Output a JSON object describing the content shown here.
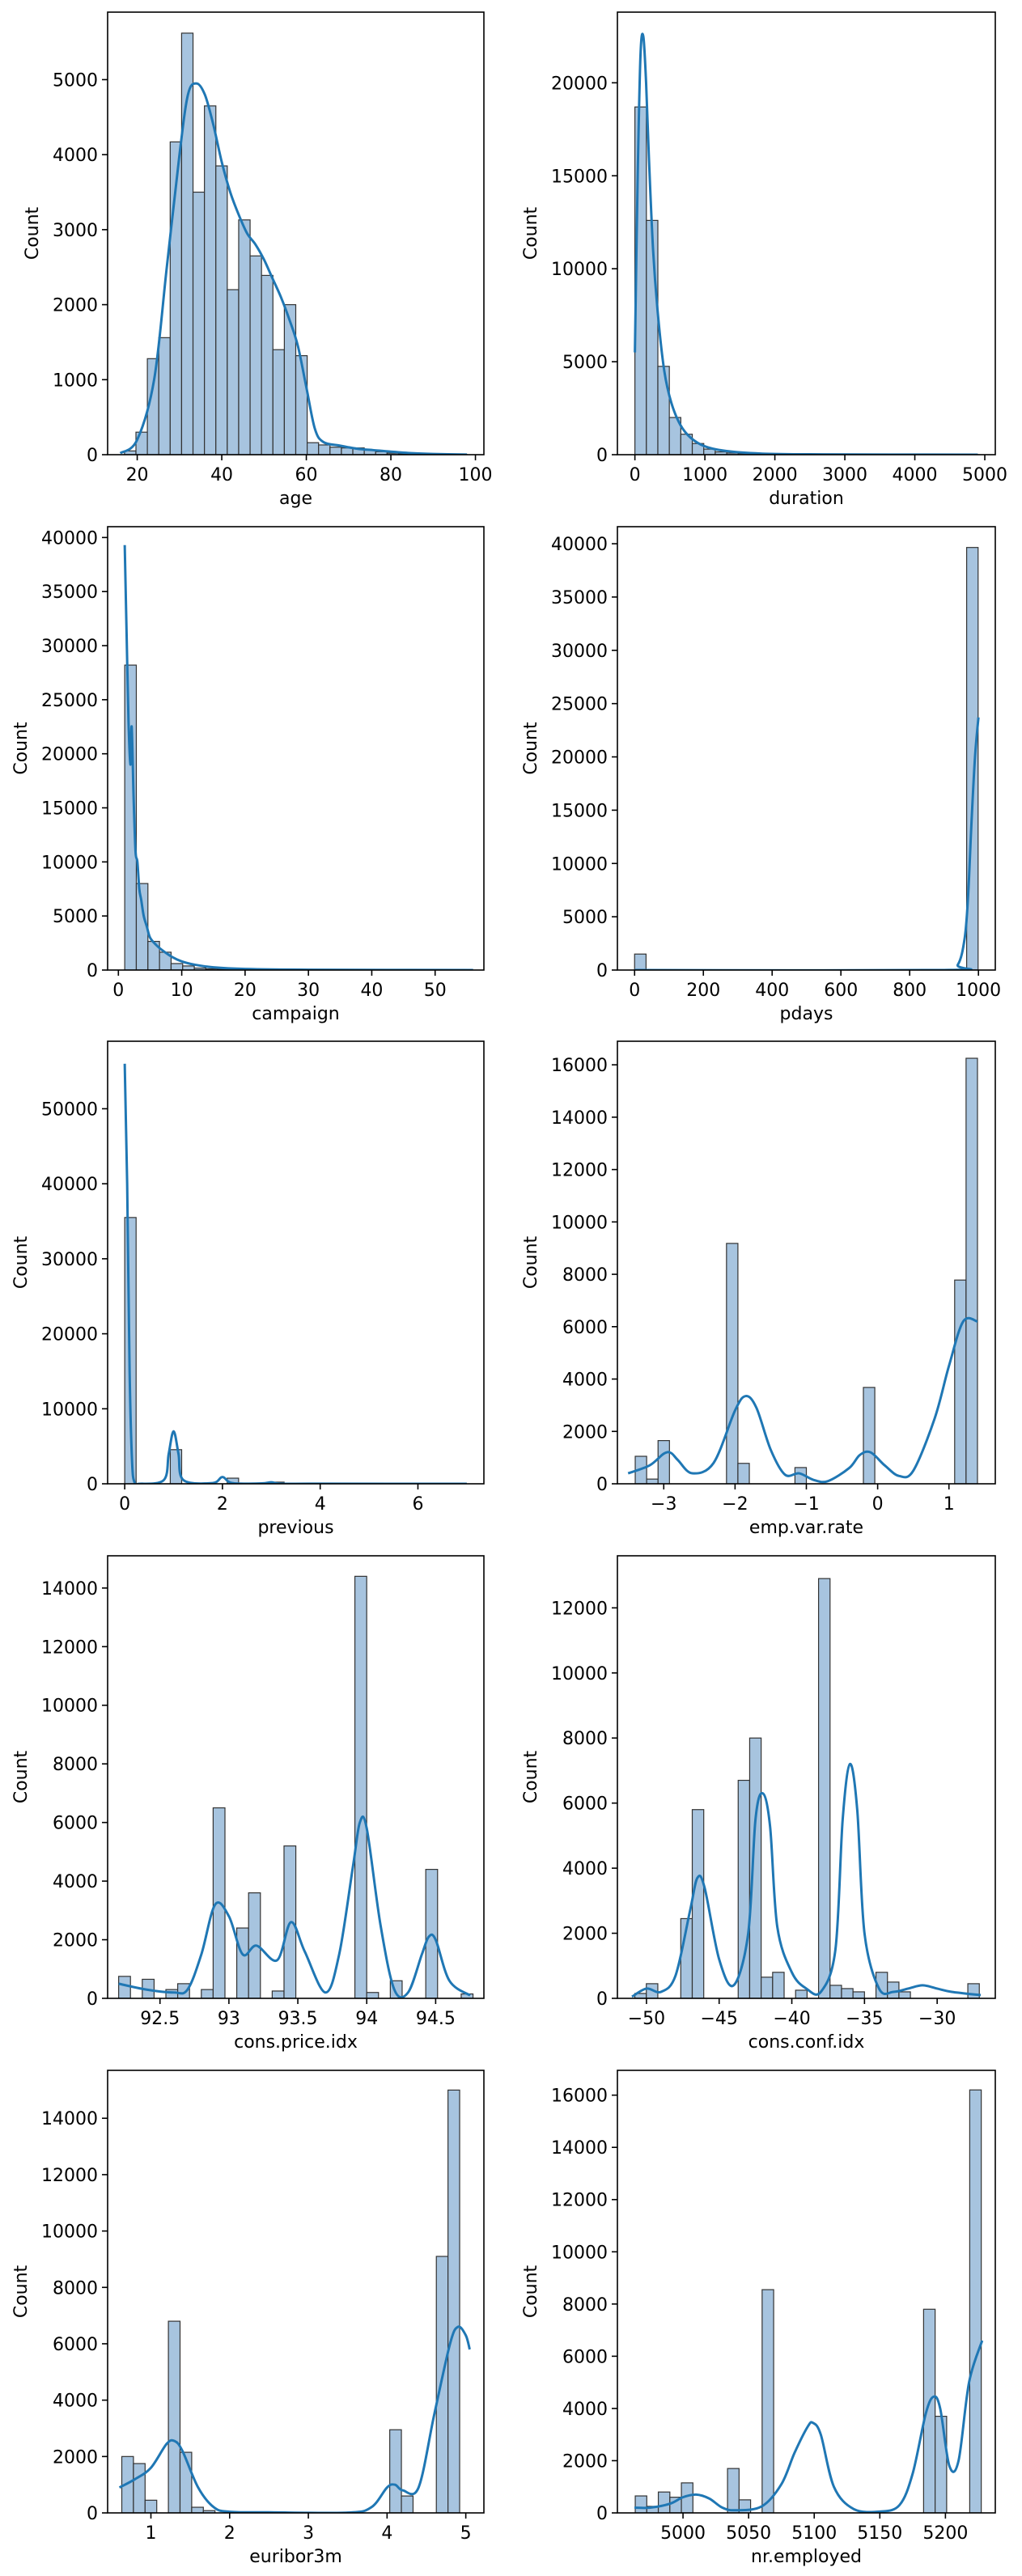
{
  "colors": {
    "bar_fill": "#a7c4df",
    "bar_edge": "#333333",
    "kde_line": "#1f77b4",
    "axes": "#000000"
  },
  "chart_data": [
    {
      "type": "bar",
      "xlabel": "age",
      "ylabel": "Count",
      "xlim": [
        13,
        102
      ],
      "ylim": [
        0,
        5900
      ],
      "xticks": [
        20,
        40,
        60,
        80,
        100
      ],
      "yticks": [
        0,
        1000,
        2000,
        3000,
        4000,
        5000
      ],
      "bins": {
        "start": 17,
        "width": 2.7,
        "counts": [
          50,
          300,
          1280,
          1560,
          4170,
          5620,
          3500,
          4650,
          3850,
          2200,
          3130,
          2650,
          2390,
          1400,
          2000,
          1320,
          160,
          130,
          100,
          90,
          90,
          60,
          40,
          20,
          10,
          5,
          5,
          5,
          3,
          2
        ]
      },
      "kde": {
        "x": [
          16,
          20,
          24,
          27,
          30,
          32,
          34,
          36,
          38,
          40,
          42,
          44,
          46,
          48,
          50,
          52,
          54,
          56,
          58,
          60,
          62,
          64,
          68,
          72,
          76,
          80,
          85,
          90,
          98
        ],
        "y": [
          20,
          200,
          1000,
          2500,
          4000,
          4800,
          4950,
          4800,
          4400,
          3900,
          3500,
          3200,
          2950,
          2800,
          2600,
          2350,
          2100,
          1800,
          1450,
          900,
          350,
          170,
          120,
          80,
          60,
          40,
          20,
          10,
          2
        ]
      }
    },
    {
      "type": "bar",
      "xlabel": "duration",
      "ylabel": "Count",
      "xlim": [
        -250,
        5150
      ],
      "ylim": [
        0,
        23800
      ],
      "xticks": [
        0,
        1000,
        2000,
        3000,
        4000,
        5000
      ],
      "yticks": [
        0,
        5000,
        10000,
        15000,
        20000
      ],
      "bins": {
        "start": 0,
        "width": 164,
        "counts": [
          18700,
          12600,
          4750,
          2000,
          1100,
          600,
          300,
          150,
          90,
          60,
          40,
          20,
          10,
          8,
          5,
          5,
          3,
          2,
          2,
          1,
          1,
          1,
          1,
          0,
          0,
          0,
          0,
          0,
          0,
          1
        ]
      },
      "kde": {
        "x": [
          0,
          40,
          80,
          120,
          160,
          200,
          260,
          330,
          420,
          520,
          650,
          800,
          1000,
          1300,
          1800,
          2500,
          4900
        ],
        "y": [
          5500,
          15000,
          21500,
          22500,
          20000,
          16000,
          11000,
          7500,
          4500,
          2800,
          1600,
          900,
          450,
          200,
          60,
          20,
          0
        ]
      }
    },
    {
      "type": "bar",
      "xlabel": "campaign",
      "ylabel": "Count",
      "xlim": [
        -1.7,
        57.7
      ],
      "ylim": [
        0,
        41000
      ],
      "xticks": [
        0,
        10,
        20,
        30,
        40,
        50
      ],
      "yticks": [
        0,
        5000,
        10000,
        15000,
        20000,
        25000,
        30000,
        35000,
        40000
      ],
      "bins": {
        "start": 1,
        "width": 1.83,
        "counts": [
          28200,
          8000,
          2650,
          1650,
          600,
          380,
          180,
          110,
          80,
          50,
          30,
          20,
          15,
          10,
          8,
          6,
          5,
          4,
          3,
          3,
          2,
          2,
          2,
          1,
          1,
          1,
          1,
          1,
          1,
          1
        ]
      },
      "kde": {
        "x": [
          1,
          1.3,
          1.6,
          1.9,
          2.1,
          2.4,
          2.7,
          3.0,
          3.3,
          3.6,
          4.0,
          4.5,
          5.0,
          6.0,
          7.0,
          8.5,
          10,
          12,
          15,
          20,
          30,
          56
        ],
        "y": [
          39300,
          31000,
          23000,
          19000,
          22500,
          16000,
          11000,
          10000,
          7500,
          6500,
          5000,
          4000,
          3000,
          2300,
          1800,
          1200,
          800,
          500,
          250,
          100,
          30,
          0
        ]
      }
    },
    {
      "type": "bar",
      "xlabel": "pdays",
      "ylabel": "Count",
      "xlim": [
        -50,
        1049
      ],
      "ylim": [
        0,
        41600
      ],
      "xticks": [
        0,
        200,
        400,
        600,
        800,
        1000
      ],
      "yticks": [
        0,
        5000,
        10000,
        15000,
        20000,
        25000,
        30000,
        35000,
        40000
      ],
      "bins": {
        "start": 0,
        "width": 33.3,
        "counts": [
          1500,
          0,
          0,
          0,
          0,
          0,
          0,
          0,
          0,
          0,
          0,
          0,
          0,
          0,
          0,
          0,
          0,
          0,
          0,
          0,
          0,
          0,
          0,
          0,
          0,
          0,
          0,
          0,
          0,
          39650
        ]
      },
      "kde": {
        "x": [
          0,
          900,
          940,
          960,
          970,
          980,
          990,
          1000
        ],
        "y": [
          0,
          0,
          500,
          3000,
          7000,
          14000,
          20000,
          23700
        ]
      }
    },
    {
      "type": "bar",
      "xlabel": "previous",
      "ylabel": "Count",
      "xlim": [
        -0.35,
        7.35
      ],
      "ylim": [
        0,
        59000
      ],
      "xticks": [
        0,
        2,
        4,
        6
      ],
      "yticks": [
        0,
        10000,
        20000,
        30000,
        40000,
        50000
      ],
      "bins": {
        "start": 0,
        "width": 0.233,
        "counts": [
          35500,
          0,
          0,
          0,
          4550,
          0,
          0,
          0,
          0,
          750,
          0,
          0,
          0,
          220,
          0,
          0,
          0,
          70,
          0,
          0,
          0,
          0,
          18,
          0,
          0,
          0,
          5,
          0,
          0,
          1
        ]
      },
      "kde": {
        "x": [
          0,
          0.05,
          0.1,
          0.15,
          0.2,
          0.3,
          0.8,
          0.9,
          1.0,
          1.1,
          1.2,
          1.8,
          2.0,
          2.2,
          2.8,
          3.0,
          3.2,
          4,
          7
        ],
        "y": [
          56000,
          40000,
          15000,
          3000,
          200,
          0,
          500,
          4000,
          7000,
          4000,
          500,
          100,
          900,
          100,
          50,
          200,
          20,
          10,
          0
        ]
      }
    },
    {
      "type": "bar",
      "xlabel": "emp.var.rate",
      "ylabel": "Count",
      "xlim": [
        -3.65,
        1.65
      ],
      "ylim": [
        0,
        16900
      ],
      "xticks": [
        -3,
        -2,
        -1,
        0,
        1
      ],
      "yticks": [
        0,
        2000,
        4000,
        6000,
        8000,
        10000,
        12000,
        14000,
        16000
      ],
      "bins": {
        "start": -3.4,
        "width": 0.16,
        "counts": [
          1050,
          180,
          1650,
          0,
          0,
          0,
          0,
          0,
          9180,
          780,
          0,
          0,
          0,
          0,
          620,
          0,
          0,
          0,
          0,
          0,
          3680,
          0,
          0,
          0,
          0,
          0,
          0,
          0,
          7780,
          16250
        ]
      },
      "kde": {
        "x": [
          -3.5,
          -3.2,
          -3.0,
          -2.9,
          -2.8,
          -2.6,
          -2.3,
          -2.0,
          -1.85,
          -1.7,
          -1.5,
          -1.3,
          -1.1,
          -0.9,
          -0.7,
          -0.4,
          -0.25,
          -0.1,
          0.1,
          0.3,
          0.5,
          0.8,
          1.0,
          1.2,
          1.4
        ],
        "y": [
          400,
          700,
          1150,
          1180,
          900,
          400,
          800,
          2800,
          3350,
          2900,
          1300,
          350,
          400,
          150,
          100,
          600,
          1100,
          1200,
          700,
          300,
          500,
          2500,
          4500,
          6200,
          6200
        ]
      }
    },
    {
      "type": "bar",
      "xlabel": "cons.price.idx",
      "ylabel": "Count",
      "xlim": [
        92.12,
        94.85
      ],
      "ylim": [
        0,
        15100
      ],
      "xticks": [
        92.5,
        93.0,
        93.5,
        94.0,
        94.5
      ],
      "yticks": [
        0,
        2000,
        4000,
        6000,
        8000,
        10000,
        12000,
        14000
      ],
      "bins": {
        "start": 92.2,
        "width": 0.0857,
        "counts": [
          750,
          0,
          650,
          0,
          300,
          500,
          0,
          300,
          6500,
          0,
          2400,
          3600,
          0,
          250,
          5200,
          0,
          0,
          0,
          0,
          0,
          14400,
          200,
          0,
          600,
          0,
          0,
          4400,
          0,
          0,
          150
        ]
      },
      "kde": {
        "x": [
          92.2,
          92.4,
          92.6,
          92.7,
          92.8,
          92.9,
          93.0,
          93.1,
          93.2,
          93.35,
          93.45,
          93.55,
          93.7,
          93.8,
          93.9,
          93.95,
          94.0,
          94.1,
          94.2,
          94.3,
          94.4,
          94.45,
          94.5,
          94.6,
          94.75
        ],
        "y": [
          500,
          300,
          200,
          300,
          1500,
          3200,
          2800,
          1500,
          1800,
          1300,
          2600,
          1600,
          200,
          1500,
          4500,
          6000,
          5800,
          2500,
          300,
          200,
          1500,
          2100,
          2000,
          600,
          100
        ]
      }
    },
    {
      "type": "bar",
      "xlabel": "cons.conf.idx",
      "ylabel": "Count",
      "xlim": [
        -52.0,
        -26.0
      ],
      "ylim": [
        0,
        13600
      ],
      "xticks": [
        -50,
        -45,
        -40,
        -35,
        -30
      ],
      "yticks": [
        0,
        2000,
        4000,
        6000,
        8000,
        10000,
        12000
      ],
      "bins": {
        "start": -50.8,
        "width": 0.79,
        "counts": [
          150,
          450,
          0,
          0,
          2450,
          5800,
          0,
          0,
          0,
          6700,
          8000,
          650,
          800,
          0,
          250,
          0,
          12900,
          400,
          300,
          200,
          0,
          800,
          500,
          200,
          0,
          0,
          0,
          0,
          0,
          450
        ]
      },
      "kde": {
        "x": [
          -51,
          -50,
          -49,
          -48,
          -47,
          -46.5,
          -46,
          -45,
          -44,
          -43,
          -42.5,
          -42,
          -41.5,
          -41,
          -40,
          -39,
          -38,
          -37,
          -36.5,
          -36,
          -35.5,
          -35,
          -34,
          -33,
          -32,
          -31,
          -30,
          -29,
          -27
        ],
        "y": [
          50,
          300,
          200,
          700,
          2700,
          3700,
          3400,
          1200,
          400,
          2000,
          5500,
          6300,
          5300,
          2200,
          800,
          300,
          200,
          1500,
          5500,
          7200,
          5800,
          2000,
          300,
          200,
          300,
          400,
          300,
          200,
          100
        ]
      }
    },
    {
      "type": "bar",
      "xlabel": "euribor3m",
      "ylabel": "Count",
      "xlim": [
        0.45,
        5.23
      ],
      "ylim": [
        0,
        15700
      ],
      "xticks": [
        1,
        2,
        3,
        4,
        5
      ],
      "yticks": [
        0,
        2000,
        4000,
        6000,
        8000,
        10000,
        12000,
        14000
      ],
      "bins": {
        "start": 0.63,
        "width": 0.148,
        "counts": [
          2000,
          1750,
          450,
          0,
          6800,
          2150,
          200,
          80,
          0,
          0,
          0,
          0,
          0,
          0,
          0,
          0,
          0,
          0,
          0,
          0,
          0,
          0,
          0,
          2950,
          600,
          0,
          0,
          9100,
          15000,
          0
        ]
      },
      "kde": {
        "x": [
          0.6,
          0.8,
          1.0,
          1.2,
          1.3,
          1.4,
          1.6,
          1.8,
          2.0,
          2.5,
          3.5,
          3.8,
          4.0,
          4.1,
          4.2,
          4.4,
          4.6,
          4.8,
          4.9,
          5.0,
          5.05
        ],
        "y": [
          900,
          1200,
          1600,
          2450,
          2550,
          2200,
          900,
          200,
          40,
          20,
          10,
          200,
          900,
          1000,
          800,
          900,
          3500,
          6000,
          6600,
          6300,
          5800
        ]
      }
    },
    {
      "type": "bar",
      "xlabel": "nr.employed",
      "ylabel": "Count",
      "xlim": [
        4950,
        5238
      ],
      "ylim": [
        0,
        16950
      ],
      "xticks": [
        5000,
        5050,
        5100,
        5150,
        5200
      ],
      "yticks": [
        0,
        2000,
        4000,
        6000,
        8000,
        10000,
        12000,
        14000,
        16000
      ],
      "bins": {
        "start": 4963.6,
        "width": 8.79,
        "counts": [
          650,
          250,
          800,
          600,
          1150,
          0,
          0,
          0,
          1700,
          500,
          0,
          8550,
          0,
          0,
          0,
          0,
          0,
          0,
          0,
          0,
          0,
          0,
          0,
          0,
          0,
          7800,
          3700,
          0,
          0,
          16200
        ]
      },
      "kde": {
        "x": [
          4963,
          4975,
          4990,
          5000,
          5010,
          5020,
          5030,
          5040,
          5060,
          5075,
          5085,
          5095,
          5099,
          5105,
          5115,
          5130,
          5150,
          5165,
          5175,
          5185,
          5191,
          5196,
          5203,
          5210,
          5218,
          5228
        ],
        "y": [
          200,
          200,
          350,
          600,
          700,
          550,
          200,
          100,
          250,
          1100,
          2300,
          3300,
          3450,
          3000,
          1000,
          150,
          50,
          300,
          1500,
          3800,
          4450,
          4000,
          1800,
          2000,
          5000,
          6600
        ]
      }
    }
  ]
}
